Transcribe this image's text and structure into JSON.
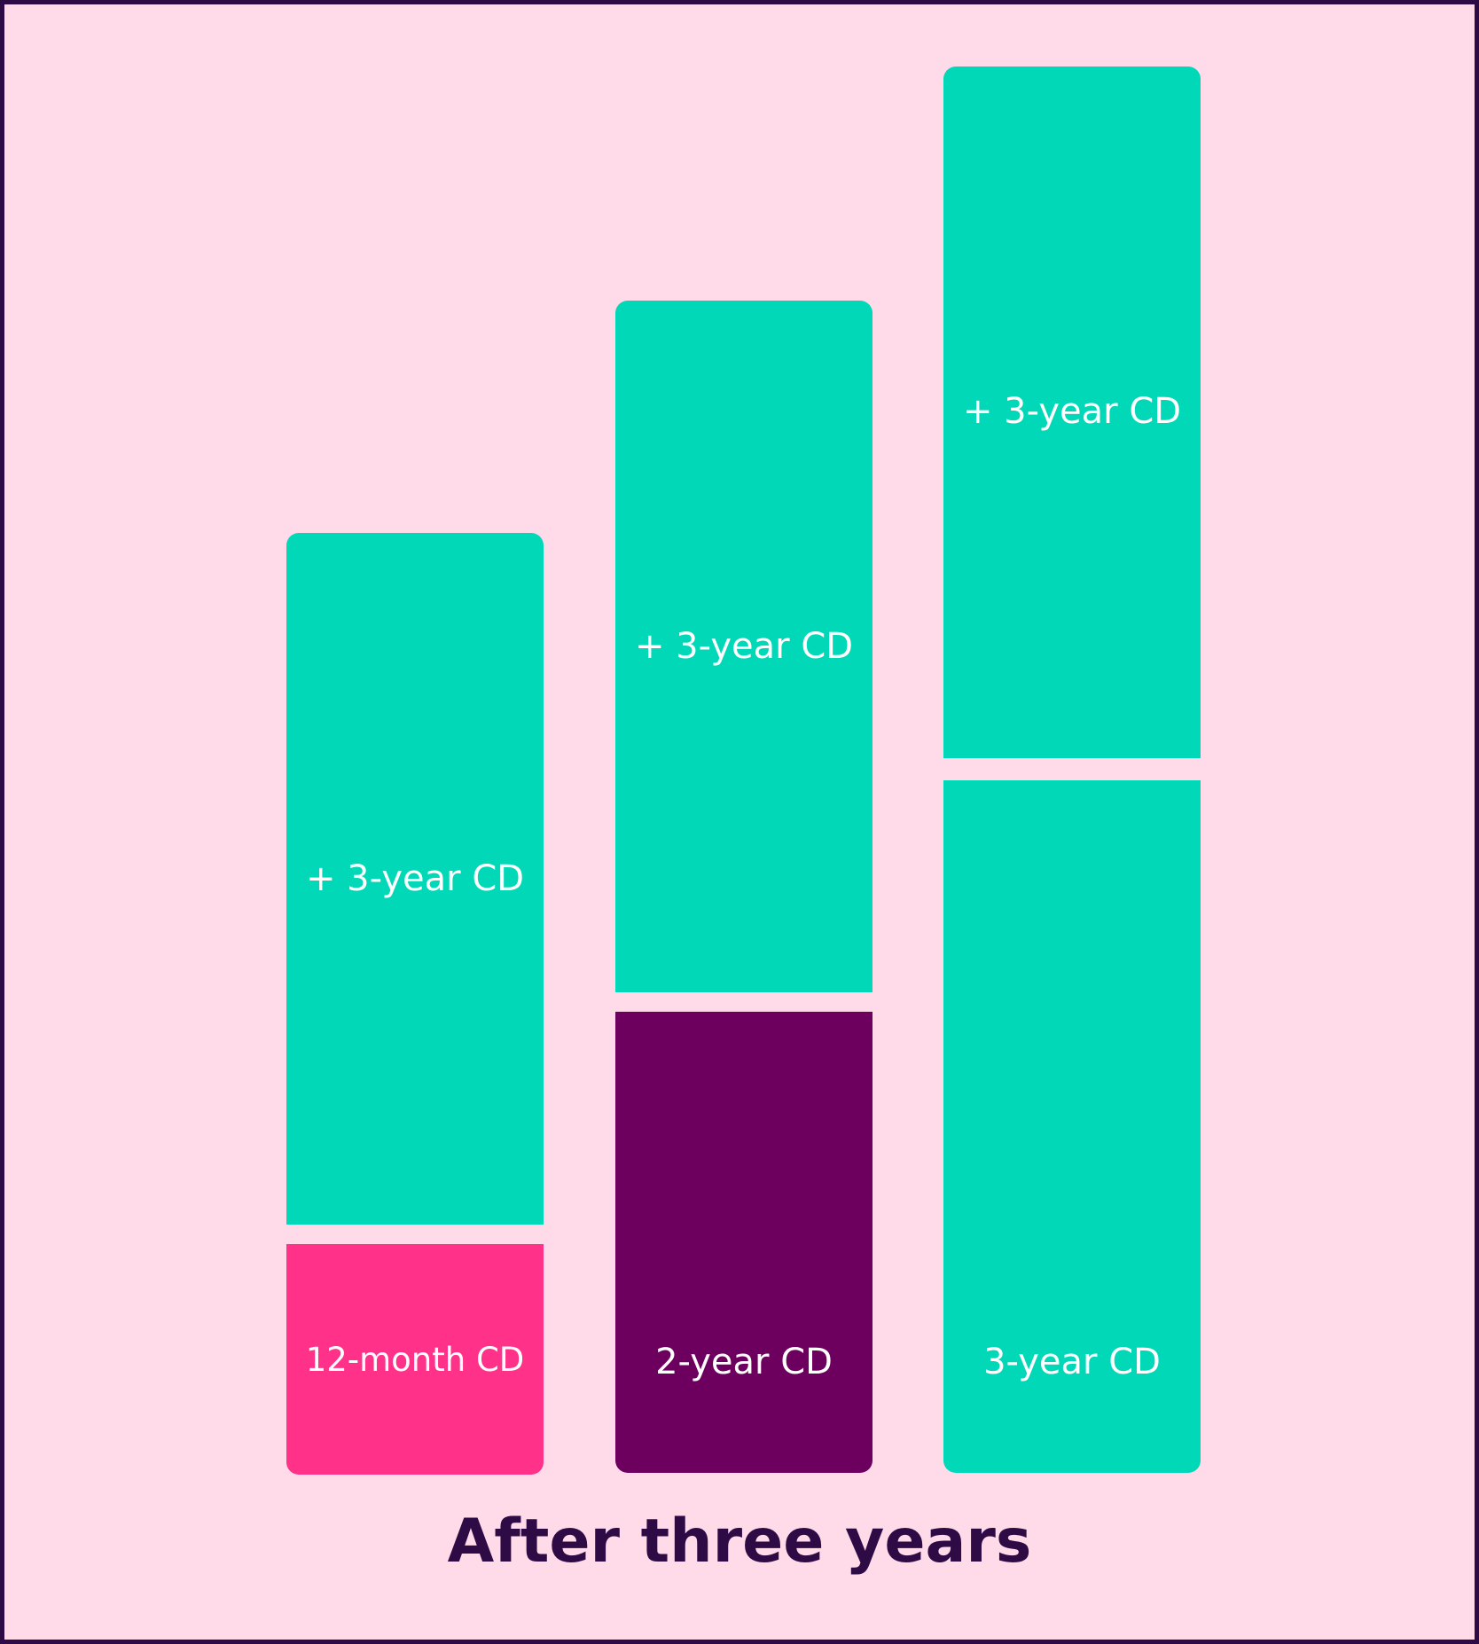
{
  "ladder": {
    "columns": [
      {
        "base_label": "12-month CD",
        "top_label": "+ 3-year CD",
        "base_color": "#ff3189",
        "top_color": "#00d8b8"
      },
      {
        "base_label": "2-year CD",
        "top_label": "+ 3-year CD",
        "base_color": "#6d005f",
        "top_color": "#00d8b8"
      },
      {
        "base_label": "3-year CD",
        "top_label": "+ 3-year CD",
        "base_color": "#00d8b8",
        "top_color": "#00d8b8"
      }
    ]
  },
  "caption": "After three years",
  "colors": {
    "background": "#ffdae9",
    "border": "#2e0b45",
    "teal": "#00d8b8",
    "pink": "#ff3189",
    "plum": "#6d005f"
  }
}
